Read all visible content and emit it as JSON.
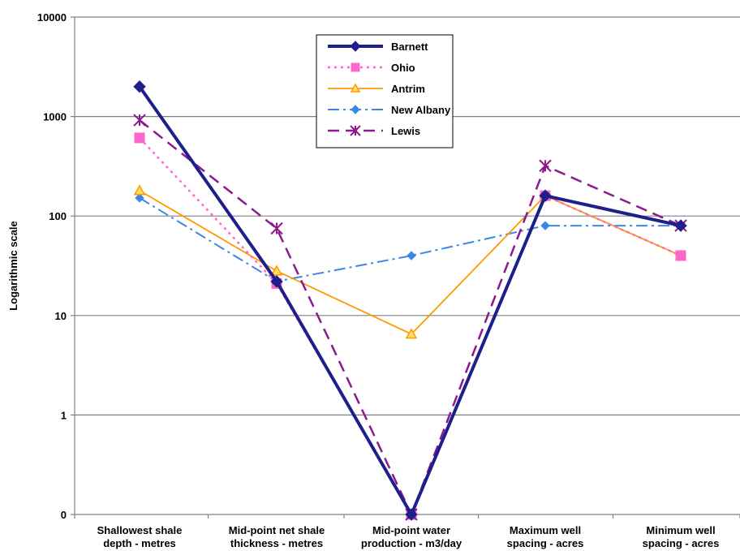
{
  "chart_data": {
    "type": "line",
    "title": "",
    "ylabel": "Logarithmic scale",
    "xlabel": "",
    "yscale": "log",
    "y_tick_labels": [
      "0",
      "1",
      "10",
      "100",
      "1000",
      "10000"
    ],
    "y_tick_values": [
      0.1,
      1,
      10,
      100,
      1000,
      10000
    ],
    "ylim": [
      0.1,
      10000
    ],
    "grid": "horizontal",
    "legend_position": "top-center",
    "categories": [
      [
        "Shallowest shale",
        "depth - metres"
      ],
      [
        "Mid-point net shale",
        "thickness - metres"
      ],
      [
        "Mid-point water",
        "production -  m3/day"
      ],
      [
        "Maximum well",
        "spacing - acres"
      ],
      [
        "Minimum well",
        "spacing - acres"
      ]
    ],
    "series": [
      {
        "name": "Barnett",
        "values": [
          2000,
          22,
          0.1,
          160,
          80
        ],
        "color": "#1f1f8c",
        "dash": "",
        "width": 4,
        "marker": "diamond",
        "marker_size": 7
      },
      {
        "name": "Ohio",
        "values": [
          610,
          21,
          0.1,
          160,
          40
        ],
        "color": "#ff66cc",
        "dash": "3,5",
        "width": 2.5,
        "marker": "square",
        "marker_size": 6
      },
      {
        "name": "Antrim",
        "values": [
          180,
          28,
          6.5,
          160,
          40
        ],
        "color": "#ff9900",
        "dash": "",
        "width": 1.8,
        "marker": "triangle",
        "marker_size": 6
      },
      {
        "name": "New Albany",
        "values": [
          152,
          22,
          40,
          80,
          80
        ],
        "color": "#3d86e6",
        "dash": "14,5,3,5",
        "width": 2,
        "marker": "diamond",
        "marker_size": 5
      },
      {
        "name": "Lewis",
        "values": [
          920,
          75,
          0.1,
          320,
          80
        ],
        "color": "#8c1a8c",
        "dash": "14,8",
        "width": 2.5,
        "marker": "star",
        "marker_size": 7
      }
    ]
  }
}
